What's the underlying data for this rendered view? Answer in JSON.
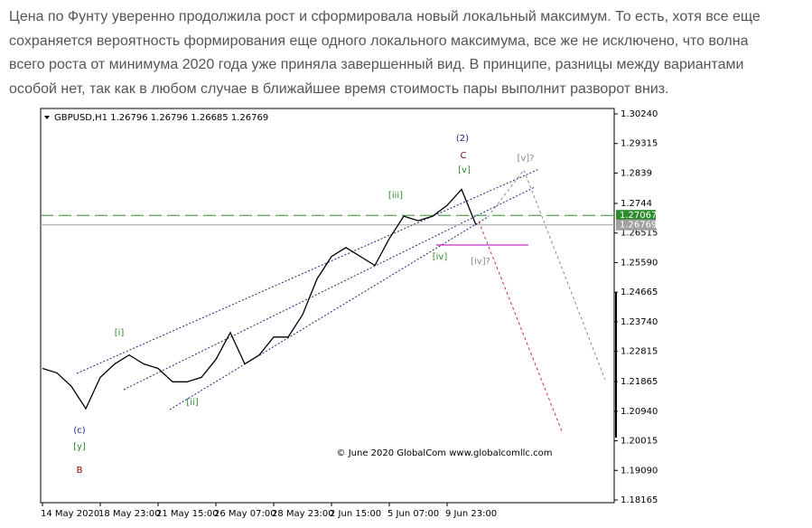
{
  "article": {
    "lines": [
      "Цена по Фунту уверенно продолжила рост и сформировала новый локальный максимум. То есть, хотя все еще",
      "сохраняется вероятность формирования еще одного локального максимума, все же не исключено, что волна",
      "всего роста от минимума 2020 года уже приняла завершенный вид. В принципе, разницы между вариантами",
      "особой нет, так как в любом случае в ближайшее время стоимость пары выполнит разворот вниз."
    ]
  },
  "chart_data": {
    "type": "line",
    "title": "GBPUSD,H1  1.26796 1.26796 1.26685 1.26769",
    "categories": [
      "14 May 2020",
      null,
      null,
      null,
      "18 May 23:00",
      null,
      null,
      null,
      "21 May 15:00",
      null,
      null,
      null,
      "26 May 07:00",
      null,
      null,
      null,
      "28 May 23:00",
      null,
      null,
      null,
      "2 Jun 15:00",
      null,
      null,
      null,
      "5 Jun 07:00",
      null,
      null,
      null,
      "9 Jun 23:00",
      null,
      null
    ],
    "series": [
      {
        "name": "GBPUSD",
        "color": "#000000",
        "values": [
          1.2228,
          1.2214,
          1.2172,
          1.2102,
          1.22,
          1.2242,
          1.227,
          1.2242,
          1.2228,
          1.2186,
          1.2186,
          1.22,
          1.2256,
          1.234,
          1.2242,
          1.227,
          1.2326,
          1.2326,
          1.2396,
          1.2508,
          1.2578,
          1.2606,
          1.2578,
          1.255,
          1.2634,
          1.2704,
          1.269,
          1.2704,
          1.2738,
          1.2788,
          1.26769
        ]
      }
    ],
    "ylim": [
      1.1808,
      1.3041
    ],
    "yticks": [
      {
        "value": 1.3024,
        "label": "1.30240"
      },
      1.29315,
      1.2839,
      1.2744,
      1.26515,
      {
        "value": 1.2559,
        "label": "1.25590"
      },
      1.24665,
      {
        "value": 1.2374,
        "label": "1.23740"
      },
      1.22815,
      1.21865,
      {
        "value": 1.2094,
        "label": "1.20940"
      },
      1.20015,
      {
        "value": 1.1909,
        "label": "1.19090"
      },
      1.18165
    ],
    "levels": [
      {
        "value": 1.27067,
        "color": "#2e8b2e"
      },
      {
        "value": 1.26769,
        "color": "#a0a0a0"
      }
    ],
    "annotations": [
      "(2)",
      "C",
      "[v]",
      "[v]?",
      "[iii]",
      "[iv]",
      "[iv]?",
      "[i]",
      "[ii]",
      "(c)",
      "[y]",
      "B",
      "© June 2020 GlobalCom www.globalcomllc.com"
    ]
  }
}
